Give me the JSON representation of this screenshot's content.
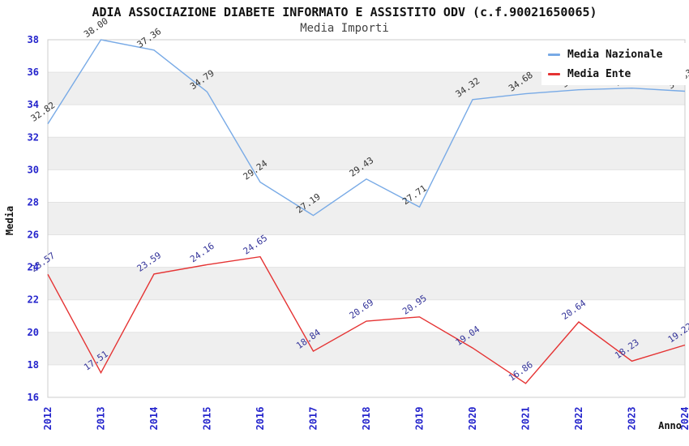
{
  "chart_data": {
    "type": "line",
    "title": "ADIA ASSOCIAZIONE DIABETE INFORMATO E ASSISTITO ODV (c.f.90021650065)",
    "subtitle": "Media Importi",
    "xlabel": "Anno",
    "ylabel": "Media",
    "categories": [
      "2012",
      "2013",
      "2014",
      "2015",
      "2016",
      "2017",
      "2018",
      "2019",
      "2020",
      "2021",
      "2022",
      "2023",
      "2024"
    ],
    "series": [
      {
        "name": "Media Nazionale",
        "color": "#78aae6",
        "label_color": "#333333",
        "values": [
          32.82,
          38.0,
          37.36,
          34.79,
          29.24,
          27.19,
          29.43,
          27.71,
          34.32,
          34.68,
          34.92,
          35.02,
          34.83
        ]
      },
      {
        "name": "Media Ente",
        "color": "#e53333",
        "label_color": "#333399",
        "values": [
          23.57,
          17.51,
          23.59,
          24.16,
          24.65,
          18.84,
          20.69,
          20.95,
          19.04,
          16.86,
          20.64,
          18.23,
          19.22
        ]
      }
    ],
    "ylim": [
      16,
      38
    ],
    "ytick_step": 2,
    "yticks": [
      16,
      18,
      20,
      22,
      24,
      26,
      28,
      30,
      32,
      34,
      36,
      38
    ],
    "grid": true,
    "band_color": "#efefef",
    "gridline_color": "#e2e2e2",
    "border_color": "#cccccc",
    "tick_label_color": "#2424cc",
    "legend_position": "upper right"
  }
}
